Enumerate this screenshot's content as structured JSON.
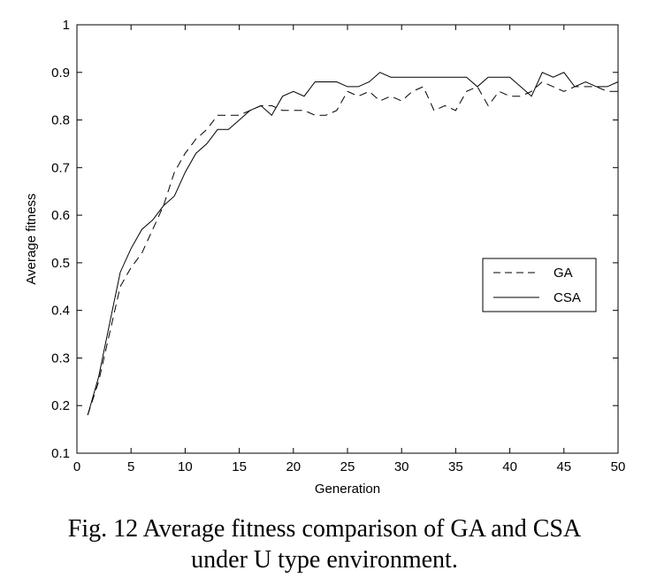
{
  "chart_data": {
    "type": "line",
    "xlabel": "Generation",
    "ylabel": "Average fitness",
    "xlim": [
      0,
      50
    ],
    "ylim": [
      0.1,
      1
    ],
    "xticks": [
      "0",
      "5",
      "10",
      "15",
      "20",
      "25",
      "30",
      "35",
      "40",
      "45",
      "50"
    ],
    "yticks": [
      "0.1",
      "0.2",
      "0.3",
      "0.4",
      "0.5",
      "0.6",
      "0.7",
      "0.8",
      "0.9",
      "1"
    ],
    "grid": false,
    "legend_position": "right",
    "x": [
      1,
      2,
      3,
      4,
      5,
      6,
      7,
      8,
      9,
      10,
      11,
      12,
      13,
      14,
      15,
      16,
      17,
      18,
      19,
      20,
      21,
      22,
      23,
      24,
      25,
      26,
      27,
      28,
      29,
      30,
      31,
      32,
      33,
      34,
      35,
      36,
      37,
      38,
      39,
      40,
      41,
      42,
      43,
      44,
      45,
      46,
      47,
      48,
      49,
      50
    ],
    "series": [
      {
        "name": "GA",
        "style": "dashed",
        "values": [
          0.18,
          0.25,
          0.35,
          0.45,
          0.49,
          0.52,
          0.57,
          0.62,
          0.69,
          0.73,
          0.76,
          0.78,
          0.81,
          0.81,
          0.81,
          0.82,
          0.83,
          0.83,
          0.82,
          0.82,
          0.82,
          0.81,
          0.81,
          0.82,
          0.86,
          0.85,
          0.86,
          0.84,
          0.85,
          0.84,
          0.86,
          0.87,
          0.82,
          0.83,
          0.82,
          0.86,
          0.87,
          0.83,
          0.86,
          0.85,
          0.85,
          0.86,
          0.88,
          0.87,
          0.86,
          0.87,
          0.87,
          0.87,
          0.86,
          0.86
        ]
      },
      {
        "name": "CSA",
        "style": "solid",
        "values": [
          0.18,
          0.26,
          0.37,
          0.48,
          0.53,
          0.57,
          0.59,
          0.62,
          0.64,
          0.69,
          0.73,
          0.75,
          0.78,
          0.78,
          0.8,
          0.82,
          0.83,
          0.81,
          0.85,
          0.86,
          0.85,
          0.88,
          0.88,
          0.88,
          0.87,
          0.87,
          0.88,
          0.9,
          0.89,
          0.89,
          0.89,
          0.89,
          0.89,
          0.89,
          0.89,
          0.89,
          0.87,
          0.89,
          0.89,
          0.89,
          0.87,
          0.85,
          0.9,
          0.89,
          0.9,
          0.87,
          0.88,
          0.87,
          0.87,
          0.88
        ]
      }
    ]
  },
  "caption": {
    "line1": "Fig. 12 Average fitness comparison of GA and CSA",
    "line2": "under U type environment."
  }
}
